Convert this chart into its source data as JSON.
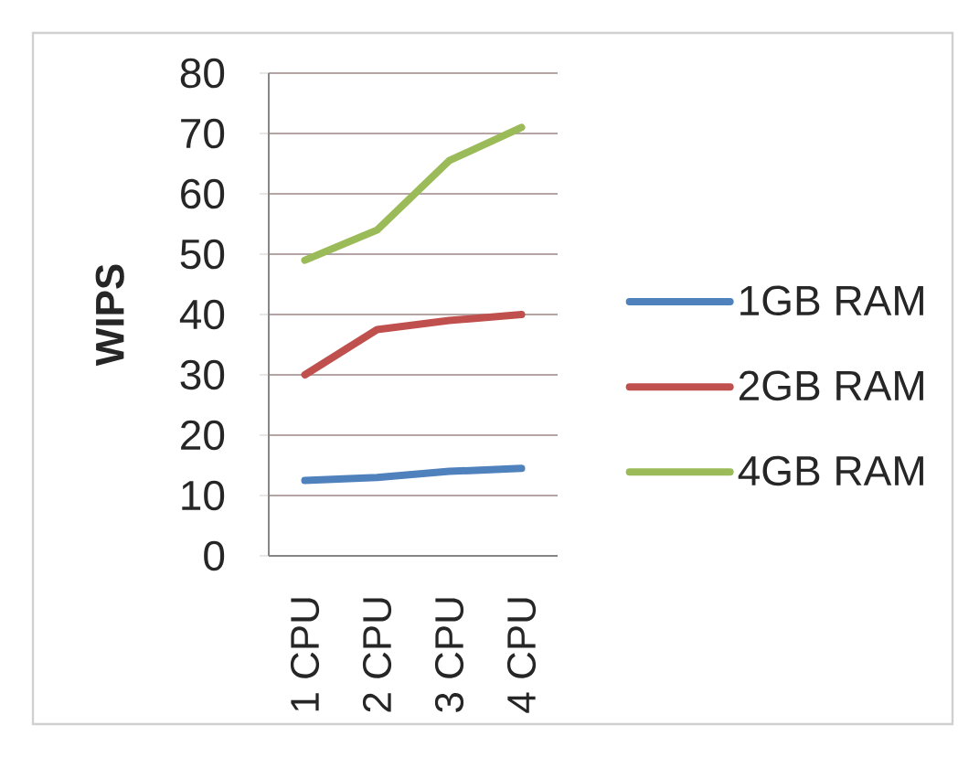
{
  "chart_data": {
    "type": "line",
    "ylabel": "WIPS",
    "categories": [
      "1 CPU",
      "2 CPU",
      "3 CPU",
      "4 CPU"
    ],
    "series": [
      {
        "name": "1GB RAM",
        "color": "#4f81bd",
        "values": [
          12.5,
          13,
          14,
          14.5
        ]
      },
      {
        "name": "2GB RAM",
        "color": "#c0504d",
        "values": [
          30,
          37.5,
          39,
          40
        ]
      },
      {
        "name": "4GB RAM",
        "color": "#9bbb59",
        "values": [
          49,
          54,
          65.5,
          71
        ]
      }
    ],
    "ylim": [
      0,
      80
    ],
    "yticks": [
      0,
      10,
      20,
      30,
      40,
      50,
      60,
      70,
      80
    ],
    "grid": "y",
    "legend": "right",
    "marker": "none",
    "line_style": "solid"
  }
}
